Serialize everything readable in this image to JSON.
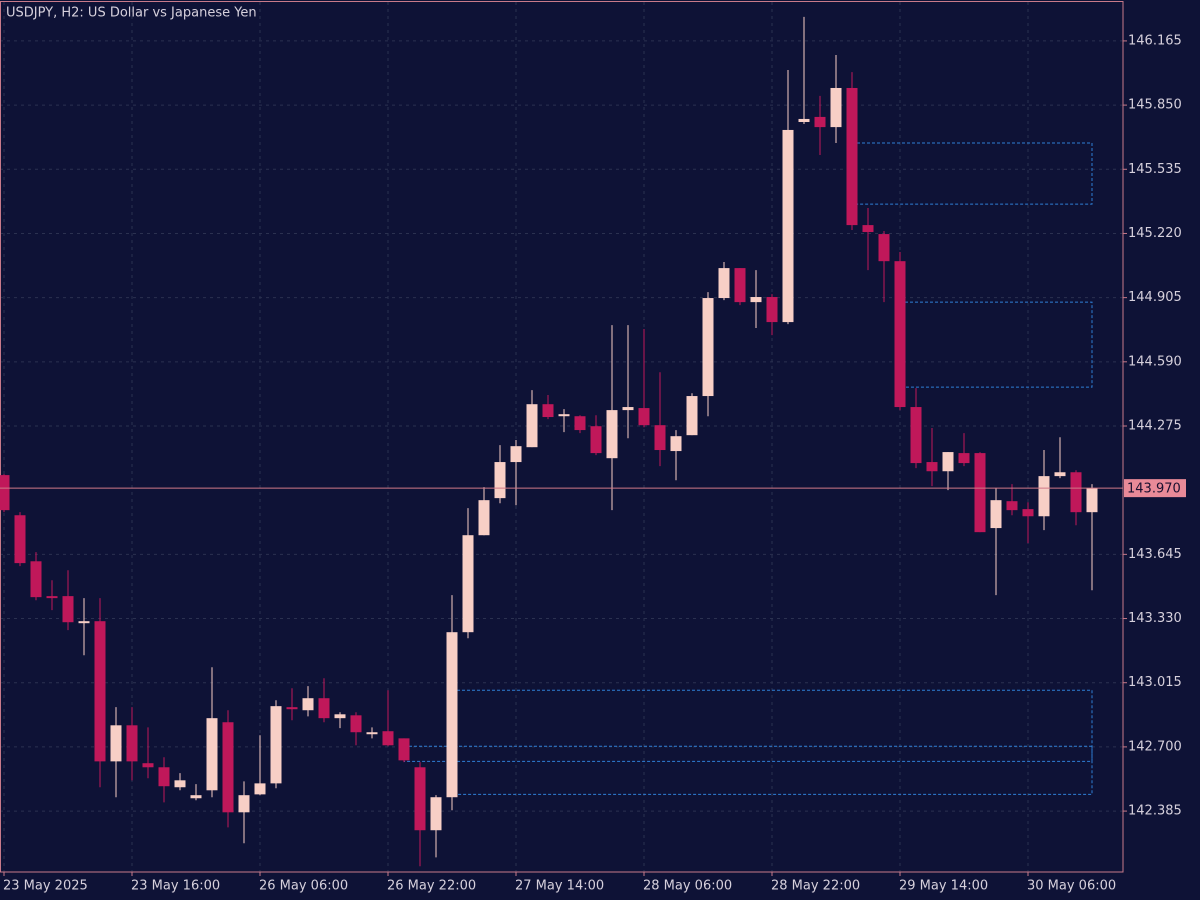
{
  "chart_data": {
    "type": "candlestick",
    "title": "USDJPY, H2:  US Dollar vs Japanese Yen",
    "categories": [
      "23 May 2025",
      null,
      null,
      null,
      null,
      null,
      null,
      null,
      "23 May 16:00",
      null,
      null,
      null,
      null,
      null,
      null,
      null,
      "26 May 06:00",
      null,
      null,
      null,
      null,
      null,
      null,
      null,
      "26 May 22:00",
      null,
      null,
      null,
      null,
      null,
      null,
      null,
      "27 May 14:00",
      null,
      null,
      null,
      null,
      null,
      null,
      null,
      "28 May 06:00",
      null,
      null,
      null,
      null,
      null,
      null,
      null,
      "28 May 22:00",
      null,
      null,
      null,
      null,
      null,
      null,
      null,
      "29 May 14:00",
      null,
      null,
      null,
      null,
      null,
      null,
      null,
      "30 May 06:00",
      null,
      null,
      null,
      null
    ],
    "open": [
      144.034,
      143.837,
      143.611,
      143.44,
      143.44,
      143.312,
      143.317,
      142.629,
      142.806,
      142.62,
      142.6,
      142.502,
      142.448,
      142.487,
      142.821,
      142.379,
      142.467,
      142.521,
      142.895,
      142.88,
      142.939,
      142.841,
      142.855,
      142.767,
      142.777,
      142.742,
      142.6,
      142.291,
      142.453,
      143.263,
      143.739,
      143.921,
      144.098,
      144.171,
      144.382,
      144.323,
      144.323,
      144.274,
      144.117,
      144.353,
      144.363,
      144.279,
      144.152,
      144.23,
      144.422,
      144.903,
      145.05,
      144.883,
      144.908,
      144.785,
      145.767,
      145.792,
      145.742,
      145.934,
      145.261,
      145.217,
      145.084,
      144.368,
      144.098,
      144.053,
      144.142,
      144.142,
      143.774,
      143.906,
      143.867,
      143.832,
      144.029,
      144.048,
      143.852
    ],
    "high": [
      144.039,
      143.852,
      143.656,
      143.518,
      143.567,
      143.43,
      143.43,
      142.895,
      142.895,
      142.796,
      142.649,
      142.571,
      142.517,
      143.091,
      142.88,
      142.531,
      142.757,
      142.929,
      142.988,
      142.998,
      143.037,
      142.87,
      142.87,
      142.796,
      142.978,
      142.742,
      142.625,
      142.463,
      143.445,
      143.872,
      143.975,
      144.181,
      144.206,
      144.451,
      144.427,
      144.358,
      144.328,
      144.328,
      144.77,
      144.77,
      144.751,
      144.539,
      144.255,
      144.436,
      144.932,
      145.08,
      145.05,
      145.04,
      144.922,
      146.022,
      146.283,
      145.895,
      146.096,
      146.012,
      145.345,
      145.232,
      145.129,
      144.461,
      144.265,
      144.147,
      144.24,
      144.147,
      143.97,
      143.99,
      143.901,
      144.157,
      144.22,
      144.058,
      143.99
    ],
    "low": [
      143.852,
      143.587,
      143.42,
      143.371,
      143.273,
      143.15,
      142.502,
      142.453,
      142.536,
      142.546,
      142.428,
      142.487,
      142.438,
      142.453,
      142.305,
      142.227,
      142.463,
      142.497,
      142.831,
      142.85,
      142.821,
      142.792,
      142.708,
      142.742,
      142.703,
      142.625,
      142.114,
      142.158,
      142.389,
      143.233,
      143.739,
      143.896,
      143.886,
      144.171,
      144.309,
      144.245,
      144.24,
      144.132,
      143.862,
      144.215,
      144.269,
      144.078,
      144.009,
      144.23,
      144.323,
      144.893,
      144.868,
      144.756,
      144.721,
      144.775,
      145.757,
      145.605,
      145.664,
      145.237,
      145.04,
      144.883,
      144.353,
      144.068,
      143.98,
      143.96,
      144.078,
      143.754,
      143.445,
      143.837,
      143.7,
      143.764,
      144.019,
      143.788,
      143.469
    ],
    "close": [
      143.862,
      143.602,
      143.435,
      143.435,
      143.312,
      143.317,
      142.629,
      142.806,
      142.629,
      142.6,
      142.507,
      142.536,
      142.463,
      142.841,
      142.379,
      142.463,
      142.521,
      142.9,
      142.885,
      142.939,
      142.841,
      142.86,
      142.772,
      142.772,
      142.708,
      142.634,
      142.291,
      142.453,
      143.263,
      143.739,
      143.911,
      144.098,
      144.176,
      144.382,
      144.319,
      144.333,
      144.255,
      144.142,
      144.353,
      144.368,
      144.279,
      144.157,
      144.225,
      144.422,
      144.903,
      145.05,
      144.883,
      144.908,
      144.785,
      145.728,
      145.782,
      145.742,
      145.934,
      145.261,
      145.227,
      145.084,
      144.368,
      144.093,
      144.053,
      144.147,
      144.093,
      143.754,
      143.911,
      143.862,
      143.832,
      144.029,
      144.048,
      143.852,
      143.97
    ],
    "up_color": "#f8cfc6",
    "down_color": "#c0185a",
    "ylim": [
      142.086,
      146.356
    ],
    "yticks": [
      {
        "value": 146.165,
        "label": "146.165"
      },
      {
        "value": 145.85,
        "label": "145.850"
      },
      {
        "value": 145.535,
        "label": "145.535"
      },
      {
        "value": 145.22,
        "label": "145.220"
      },
      {
        "value": 144.905,
        "label": "144.905"
      },
      {
        "value": 144.59,
        "label": "144.590"
      },
      {
        "value": 144.275,
        "label": "144.275"
      },
      {
        "value": 143.645,
        "label": "143.645"
      },
      {
        "value": 143.33,
        "label": "143.330"
      },
      {
        "value": 143.015,
        "label": "143.015"
      },
      {
        "value": 142.7,
        "label": "142.700"
      },
      {
        "value": 142.385,
        "label": "142.385"
      }
    ],
    "last_price": {
      "value": 143.97,
      "label": "143.970"
    },
    "zones": [
      {
        "start": 53,
        "top": 145.664,
        "bottom": 145.364
      },
      {
        "start": 56,
        "top": 144.883,
        "bottom": 144.466
      },
      {
        "start": 28,
        "top": 142.978,
        "bottom": 142.467
      },
      {
        "start": 25,
        "top": 142.703,
        "bottom": 142.629
      }
    ],
    "zone_color": "#2f7fd6",
    "grid": true
  }
}
